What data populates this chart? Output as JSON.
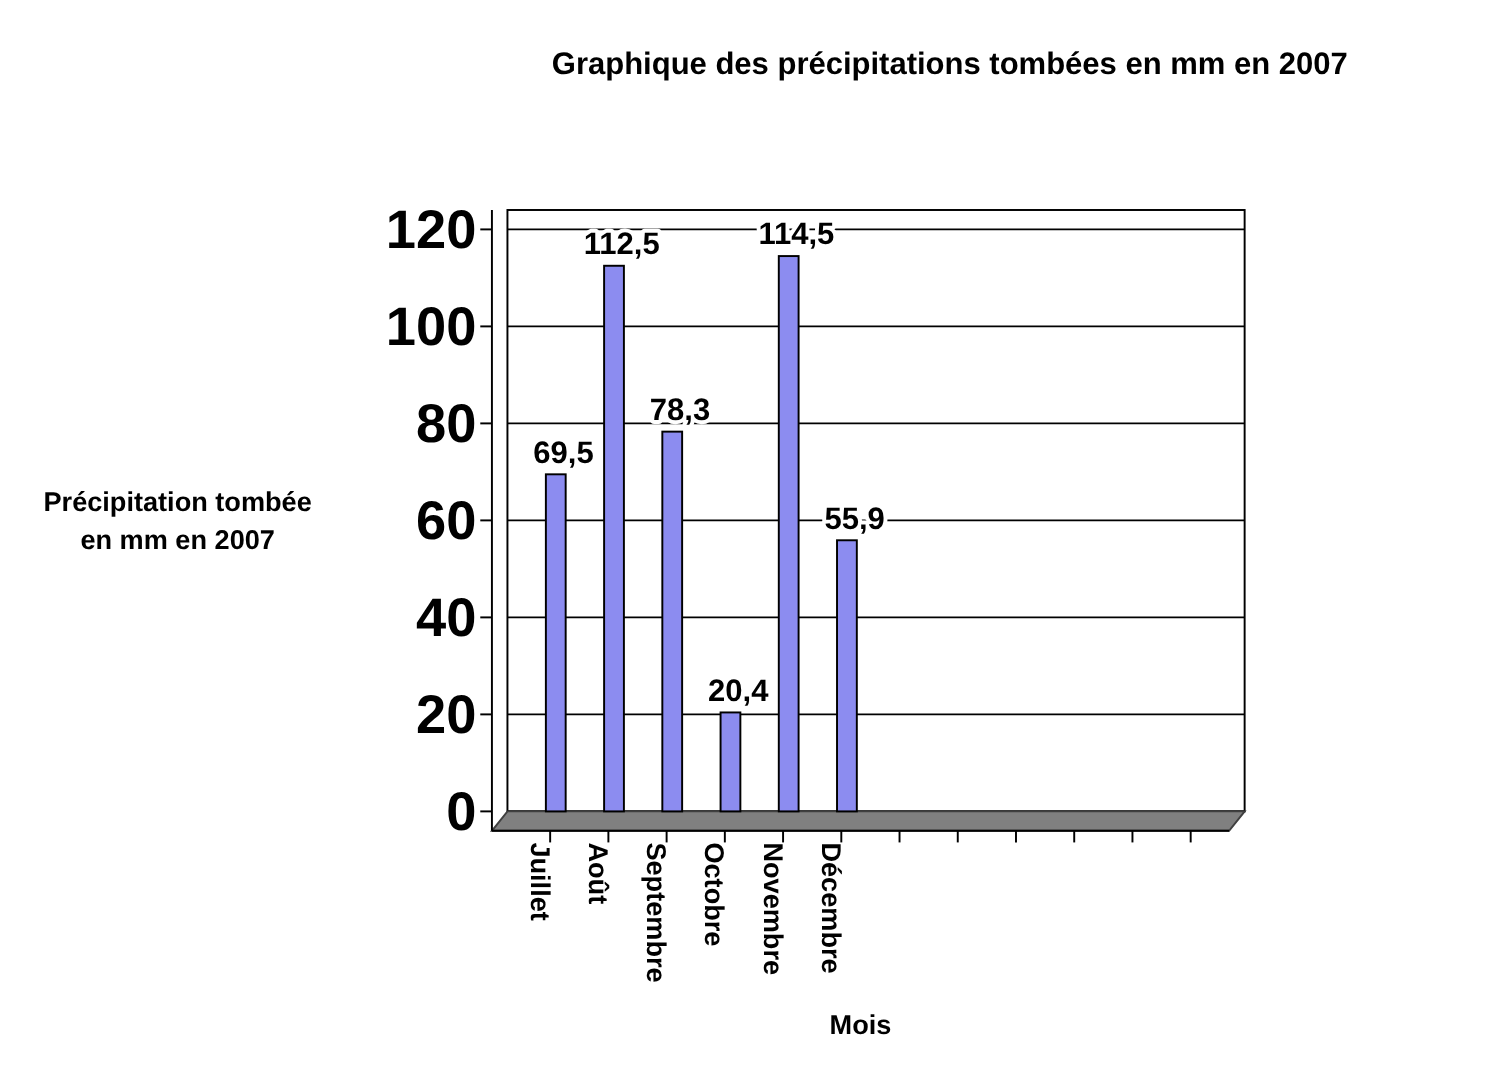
{
  "chart_data": {
    "type": "bar",
    "title": "Graphique des précipitations tombées en mm en 2007",
    "xlabel": "Mois",
    "ylabel": "Précipitation tombée\nen mm en 2007",
    "categories": [
      "Juillet",
      "Août",
      "Septembre",
      "Octobre",
      "Novembre",
      "Décembre",
      null,
      null,
      null,
      null,
      null,
      null
    ],
    "values": [
      69.5,
      112.5,
      78.3,
      20.4,
      114.5,
      55.9,
      null,
      null,
      null,
      null,
      null,
      null
    ],
    "value_labels": [
      "69,5",
      "112,5",
      "78,3",
      "20,4",
      "114,5",
      "55,9",
      null,
      null,
      null,
      null,
      null,
      null
    ],
    "color": "#8c8cf0",
    "ylim": [
      0,
      120
    ],
    "yticks": [
      0,
      20,
      40,
      60,
      80,
      100,
      120
    ],
    "grid": "y"
  }
}
